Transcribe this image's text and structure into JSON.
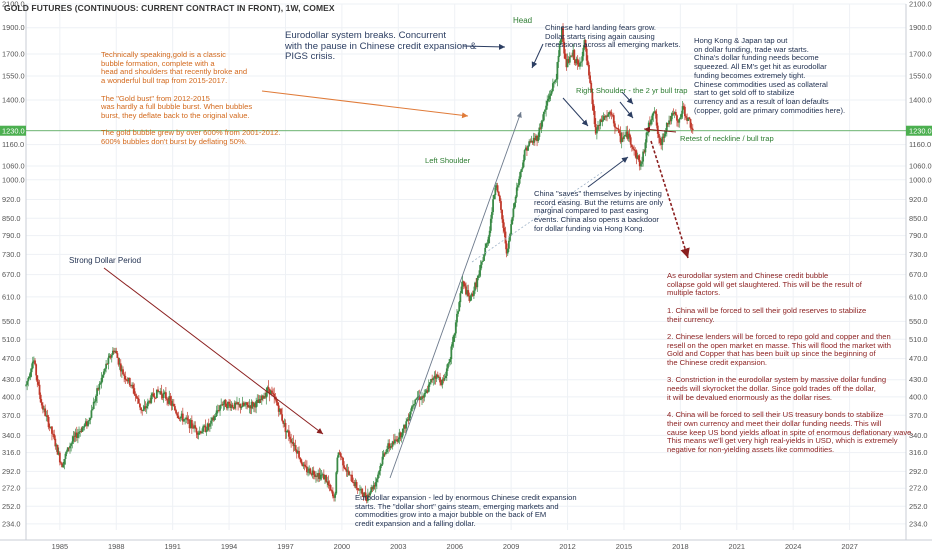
{
  "header": {
    "title": "GOLD FUTURES (CONTINUOUS: CURRENT CONTRACT IN FRONT), 1W, COMEX"
  },
  "annotations": {
    "technical": "Technically speaking,gold is a classic\nbubble formation, complete with a\nhead and shoulders that recently broke and\na wonderful bull trap from 2015-2017.\n\nThe \"Gold bust\" from 2012-2015\nwas hardly a full bubble burst. When bubbles\nburst, they deflate back to the original value.\n\nThe gold bubble grew by over 600% from 2001-2012.\n600% bubbles don't burst by deflating 50%.",
    "eurodollar_breaks": "Eurodollar system breaks. Concurrent\nwith the pause in Chinese credit expansion &\nPIGS crisis.",
    "head": "Head",
    "china_hard_landing": "Chinese hard landing fears grow.\nDollar starts rising again causing\nrecessions across all emerging markets.",
    "hongkong_japan": "Hong Kong & Japan tap out\non dollar funding, trade war starts.\nChina's dollar funding needs become\nsqueezed. All EM's get hit as eurodollar\nfunding becomes extremely tight.\nChinese commodities used as collateral\nstart to get sold off to stabilize\ncurrency and as a result of loan defaults\n(copper, gold are primary commodities here).",
    "right_shoulder": "Right Shoulder - the 2 yr bull trap",
    "retest": "Retest of neckline / bull trap",
    "left_shoulder": "Left Shoulder",
    "china_saves": "China \"saves\" themselves by injecting\nrecord easing. But the returns are only\nmarginal compared to past easing\nevents. China also opens a backdoor\nfor dollar funding via Hong Kong.",
    "strong_dollar": "Strong Dollar Period",
    "collapse": "As eurodollar system and Chinese credit bubble\ncollapse gold will get slaughtered. This will be the result of\nmultiple factors.\n\n1. China will be forced to sell their gold reserves to stabilize\ntheir currency.\n\n2. Chinese lenders will be forced to repo gold and copper and then\nresell on the open market en masse. This will flood the market with\nGold and Copper that has been built up since the beginning of\nthe Chinese credit expansion.\n\n3. Constriction in the eurodollar system by massive dollar funding\nneeds will skyrocket the dollar. Since gold trades off the dollar,\nit will be devalued enormously as the dollar rises.\n\n4. China will be forced to sell their US treasury bonds to stabilize\ntheir own currency and meet their dollar funding needs. This will\ncause keep US bond yields afloat in spite of enormous deflationary wave.\nThis means we'll get very high real-yields in USD, which is extremely\nnegative for non-yielding assets like commodities.",
    "eurodollar_expansion": "Eurodollar expansion - led by enormous Chinese credit expansion\nstarts. The \"dollar short\" gains steam, emerging markets and\ncommodities grow into a major bubble on the back of EM\ncredit expansion and a falling dollar."
  },
  "colors": {
    "up": "#3a8a46",
    "down": "#c0392b",
    "price_line": "#43a047",
    "price_tag": "#4caf50",
    "arrow_dark": "#2c3e62",
    "arrow_orange": "#e07b39",
    "arrow_red": "#8b1f1f",
    "trendline": "#6d7a8c"
  },
  "chart_data": {
    "type": "candlestick",
    "title": "GOLD FUTURES (CONTINUOUS: CURRENT CONTRACT IN FRONT), 1W, COMEX",
    "y_scale": "log",
    "ylim": [
      228,
      2100
    ],
    "xlim": [
      1983.2,
      2030.0
    ],
    "y_ticks": [
      2100.0,
      1900.0,
      1700.0,
      1550.0,
      1400.0,
      1230.0,
      1160.0,
      1060.0,
      1000.0,
      920.0,
      850.0,
      790.0,
      730.0,
      670.0,
      610.0,
      550.0,
      510.0,
      470.0,
      430.0,
      400.0,
      370.0,
      340.0,
      316.0,
      292.0,
      272.0,
      252.0,
      234.0
    ],
    "y_tick_labels": [
      "2100.0",
      "1900.0",
      "1700.0",
      "1550.0",
      "1400.0",
      "1230.0",
      "1160.0",
      "1060.0",
      "1000.0",
      "920.0",
      "850.0",
      "790.0",
      "730.0",
      "670.0",
      "610.0",
      "550.0",
      "510.0",
      "470.0",
      "430.0",
      "400.0",
      "370.0",
      "340.0",
      "316.0",
      "292.0",
      "272.0",
      "252.0",
      "234.0"
    ],
    "x_ticks": [
      1985,
      1988,
      1991,
      1994,
      1997,
      2000,
      2003,
      2006,
      2009,
      2012,
      2015,
      2018,
      2021,
      2024,
      2027
    ],
    "x_tick_labels": [
      "1985",
      "1988",
      "1991",
      "1994",
      "1997",
      "2000",
      "2003",
      "2006",
      "2009",
      "2012",
      "2015",
      "2018",
      "2021",
      "2024",
      "2027"
    ],
    "last_price": 1230.0,
    "last_price_label": "1230.0",
    "price_path": [
      [
        1983.2,
        420
      ],
      [
        1983.6,
        470
      ],
      [
        1984.0,
        390
      ],
      [
        1984.5,
        350
      ],
      [
        1985.1,
        300
      ],
      [
        1985.5,
        325
      ],
      [
        1986.0,
        345
      ],
      [
        1986.5,
        360
      ],
      [
        1987.0,
        410
      ],
      [
        1987.5,
        460
      ],
      [
        1987.9,
        490
      ],
      [
        1988.3,
        445
      ],
      [
        1988.8,
        420
      ],
      [
        1989.4,
        375
      ],
      [
        1989.9,
        400
      ],
      [
        1990.3,
        410
      ],
      [
        1990.8,
        395
      ],
      [
        1991.3,
        370
      ],
      [
        1991.8,
        360
      ],
      [
        1992.4,
        345
      ],
      [
        1993.0,
        355
      ],
      [
        1993.6,
        390
      ],
      [
        1994.3,
        385
      ],
      [
        1995.0,
        385
      ],
      [
        1995.6,
        390
      ],
      [
        1996.1,
        415
      ],
      [
        1996.6,
        385
      ],
      [
        1997.0,
        350
      ],
      [
        1997.6,
        320
      ],
      [
        1998.0,
        295
      ],
      [
        1998.6,
        290
      ],
      [
        1999.1,
        285
      ],
      [
        1999.6,
        258
      ],
      [
        1999.8,
        320
      ],
      [
        2000.3,
        290
      ],
      [
        2000.9,
        270
      ],
      [
        2001.3,
        262
      ],
      [
        2001.8,
        280
      ],
      [
        2002.3,
        320
      ],
      [
        2002.8,
        330
      ],
      [
        2003.3,
        350
      ],
      [
        2003.9,
        400
      ],
      [
        2004.4,
        400
      ],
      [
        2004.9,
        440
      ],
      [
        2005.4,
        425
      ],
      [
        2005.9,
        500
      ],
      [
        2006.4,
        650
      ],
      [
        2006.8,
        600
      ],
      [
        2007.3,
        670
      ],
      [
        2007.8,
        790
      ],
      [
        2008.2,
        1000
      ],
      [
        2008.8,
        730
      ],
      [
        2009.2,
        930
      ],
      [
        2009.8,
        1150
      ],
      [
        2010.4,
        1200
      ],
      [
        2010.9,
        1380
      ],
      [
        2011.4,
        1550
      ],
      [
        2011.7,
        1900
      ],
      [
        2011.9,
        1620
      ],
      [
        2012.3,
        1700
      ],
      [
        2012.6,
        1600
      ],
      [
        2012.9,
        1780
      ],
      [
        2013.3,
        1400
      ],
      [
        2013.5,
        1220
      ],
      [
        2013.9,
        1300
      ],
      [
        2014.3,
        1320
      ],
      [
        2014.8,
        1190
      ],
      [
        2015.2,
        1210
      ],
      [
        2015.9,
        1060
      ],
      [
        2016.3,
        1250
      ],
      [
        2016.6,
        1360
      ],
      [
        2016.9,
        1150
      ],
      [
        2017.3,
        1270
      ],
      [
        2017.7,
        1320
      ],
      [
        2017.9,
        1260
      ],
      [
        2018.1,
        1355
      ],
      [
        2018.5,
        1270
      ],
      [
        2018.7,
        1230
      ]
    ]
  }
}
